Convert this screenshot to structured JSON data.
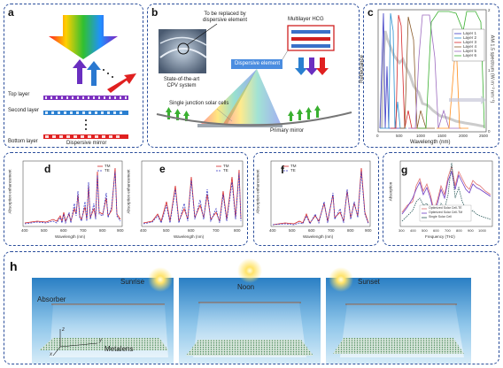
{
  "panels": {
    "a": {
      "label": "a",
      "layers": [
        "Top layer",
        "Second layer",
        "Bottom layer"
      ],
      "caption": "Dispersive mirror"
    },
    "b": {
      "label": "b",
      "replace_text": "To be replaced by dispersive element",
      "multilayer_text": "Multilayer HCG",
      "cpv_text": "State-of-the-art CPV system",
      "dispersive_element": "Dispersive element",
      "solar_cells": "Single junction solar cells",
      "primary_mirror": "Primary mirror"
    },
    "c": {
      "label": "c",
      "ylabel_left": "Reflectance",
      "ylabel_right": "AM 1.5 spectrum (W m⁻² nm⁻¹)",
      "xlabel": "Wavelength (nm)",
      "xticks": [
        "0",
        "500",
        "1000",
        "1500",
        "2000",
        "2500"
      ],
      "legend": [
        "Layer 1",
        "Layer 2",
        "Layer 3",
        "Layer 4",
        "Layer 5",
        "Layer 6"
      ],
      "right_ticks": [
        "0",
        "1",
        "2"
      ]
    },
    "d": {
      "label": "d",
      "ylabel": "Absorption enhancement",
      "xlabel": "Wavelength (nm)",
      "xticks": [
        "400",
        "500",
        "600",
        "700",
        "800",
        "900"
      ],
      "legend": [
        "TM",
        "TE"
      ]
    },
    "e": {
      "label": "e",
      "ylabel": "Absorption enhancement",
      "xlabel": "Wavelength (nm)",
      "xticks": [
        "400",
        "500",
        "600",
        "700",
        "800"
      ],
      "legend": [
        "TM",
        "TE"
      ]
    },
    "f": {
      "label": "f",
      "ylabel": "Absorption enhancement",
      "xlabel": "Wavelength (nm)",
      "xticks": [
        "400",
        "500",
        "600",
        "700",
        "800",
        "900"
      ],
      "legend": [
        "TM",
        "TE"
      ]
    },
    "g": {
      "label": "g",
      "ylabel": "Absorption",
      "xlabel": "Frequency (THz)",
      "xticks": [
        "300",
        "400",
        "500",
        "600",
        "700",
        "800",
        "900",
        "1000"
      ],
      "legend": [
        "Optimized Solar Cell-TE",
        "Optimized Solar Cell-TM",
        "Single Solar Cell"
      ]
    },
    "h": {
      "label": "h",
      "scenes": [
        "Sunrise",
        "Noon",
        "Sunset"
      ],
      "absorber": "Absorber",
      "metalens": "Metalens",
      "axes": [
        "z",
        "y",
        "x"
      ]
    }
  },
  "colors": {
    "frame": "#2a4d9b",
    "tm": "#d62728",
    "te": "#3a3ac4",
    "sky_top": "#2a7fc4",
    "sky_bottom": "#bfe0f4"
  }
}
